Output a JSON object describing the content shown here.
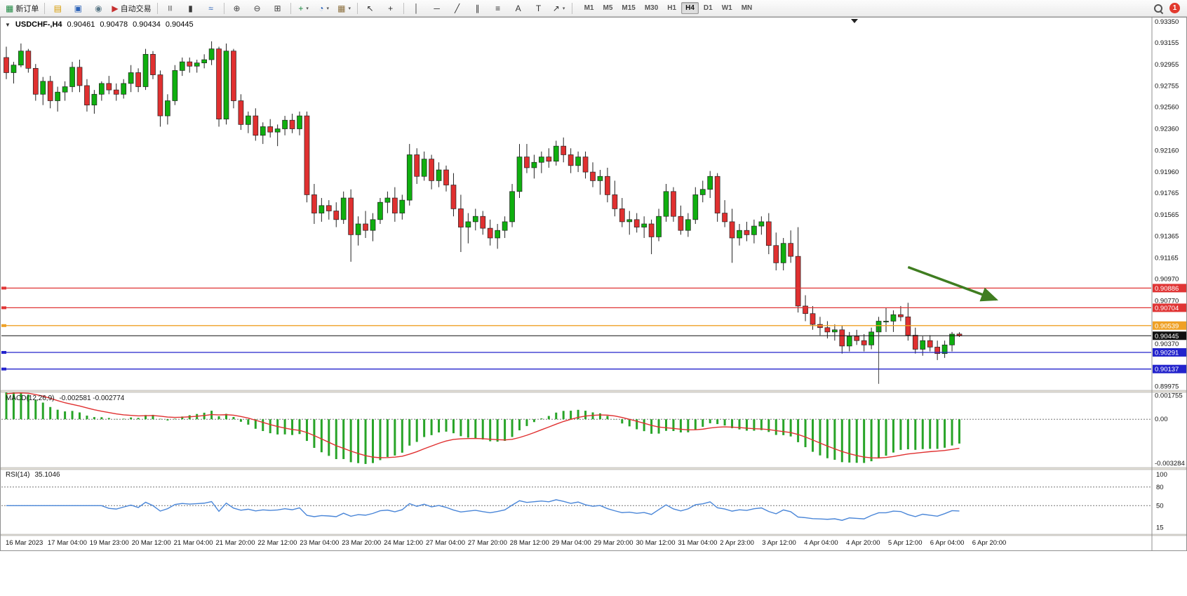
{
  "toolbar": {
    "dropdown_glyph": "▾",
    "notification_count": "1",
    "buttons": [
      {
        "name": "new-order-button",
        "glyph": "▦",
        "glyph_color": "#1b873f",
        "label": "新订单"
      },
      {
        "sep": true
      },
      {
        "name": "charts-window-button",
        "glyph": "▤",
        "glyph_color": "#d79b00"
      },
      {
        "name": "market-watch-button",
        "glyph": "▣",
        "glyph_color": "#2b62b8"
      },
      {
        "name": "navigator-button",
        "glyph": "◉",
        "glyph_color": "#5f7c8a"
      },
      {
        "name": "auto-trading-button",
        "glyph": "▶",
        "glyph_color": "#c62f2f",
        "label": "自动交易"
      },
      {
        "sep": true
      },
      {
        "name": "bar-chart-button",
        "glyph": "|||",
        "glyph_color": "#3a3a3a"
      },
      {
        "name": "candlestick-chart-button",
        "glyph": "▮",
        "glyph_color": "#3a3a3a"
      },
      {
        "name": "line-chart-button",
        "glyph": "≈",
        "glyph_color": "#2b62b8"
      },
      {
        "sep": true
      },
      {
        "name": "zoom-in-button",
        "glyph": "⊕",
        "glyph_color": "#444444"
      },
      {
        "name": "zoom-out-button",
        "glyph": "⊖",
        "glyph_color": "#444444"
      },
      {
        "name": "tile-windows-button",
        "glyph": "⊞",
        "glyph_color": "#444444"
      },
      {
        "sep": true
      },
      {
        "name": "indicators-button",
        "glyph": "+",
        "glyph_color": "#1b873f",
        "dropdown": true
      },
      {
        "name": "periods-button",
        "glyph": "◔",
        "glyph_color": "#2b62b8",
        "dropdown": true
      },
      {
        "name": "templates-button",
        "glyph": "▦",
        "glyph_color": "#8a6d3b",
        "dropdown": true
      },
      {
        "sep": true
      },
      {
        "name": "cursor-button",
        "glyph": "↖",
        "glyph_color": "#333333"
      },
      {
        "name": "crosshair-button",
        "glyph": "+",
        "glyph_color": "#333333"
      },
      {
        "sep": true
      },
      {
        "name": "vertical-line-button",
        "glyph": "│",
        "glyph_color": "#333333"
      },
      {
        "name": "horizontal-line-button",
        "glyph": "─",
        "glyph_color": "#333333"
      },
      {
        "name": "trendline-button",
        "glyph": "╱",
        "glyph_color": "#333333"
      },
      {
        "name": "equidistant-channel-button",
        "glyph": "∥",
        "glyph_color": "#333333"
      },
      {
        "name": "fibonacci-button",
        "glyph": "≡",
        "glyph_color": "#333333"
      },
      {
        "name": "text-button",
        "glyph": "A",
        "glyph_color": "#333333"
      },
      {
        "name": "text-label-button",
        "glyph": "T",
        "glyph_color": "#333333"
      },
      {
        "name": "arrows-button",
        "glyph": "↗",
        "glyph_color": "#333333",
        "dropdown": true
      },
      {
        "sep": true
      }
    ],
    "timeframes": [
      {
        "label": "M1"
      },
      {
        "label": "M5"
      },
      {
        "label": "M15"
      },
      {
        "label": "M30"
      },
      {
        "label": "H1"
      },
      {
        "label": "H4",
        "active": true
      },
      {
        "label": "D1"
      },
      {
        "label": "W1"
      },
      {
        "label": "MN"
      }
    ]
  },
  "chart": {
    "title": {
      "caret_glyph": "▼",
      "symbol_period": "USDCHF-,H4",
      "open": "0.90461",
      "high": "0.90478",
      "low": "0.90434",
      "close": "0.90445"
    },
    "price_axis_labels": [
      "0.93350",
      "0.93155",
      "0.92955",
      "0.92755",
      "0.92560",
      "0.92360",
      "0.92160",
      "0.91960",
      "0.91765",
      "0.91565",
      "0.91365",
      "0.91165",
      "0.90970",
      "0.90770",
      "0.90370",
      "0.89975"
    ],
    "price_tags": [
      {
        "text": "0.90886",
        "price": 0.90886,
        "color": "#e03535",
        "line": true
      },
      {
        "text": "0.90704",
        "price": 0.90704,
        "color": "#e03535",
        "line": true
      },
      {
        "text": "0.90539",
        "price": 0.90539,
        "color": "#efa126",
        "line": true
      },
      {
        "text": "0.90445",
        "price": 0.90445,
        "color": "#111111",
        "line": true,
        "current": true
      },
      {
        "text": "0.90291",
        "price": 0.90291,
        "color": "#2323cc",
        "line": true
      },
      {
        "text": "0.90137",
        "price": 0.90137,
        "color": "#2323cc",
        "line": true
      }
    ],
    "time_labels": [
      "16 Mar 2023",
      "17 Mar 04:00",
      "19 Mar 23:00",
      "20 Mar 12:00",
      "21 Mar 04:00",
      "21 Mar 20:00",
      "22 Mar 12:00",
      "23 Mar 04:00",
      "23 Mar 20:00",
      "24 Mar 12:00",
      "27 Mar 04:00",
      "27 Mar 20:00",
      "28 Mar 12:00",
      "29 Mar 04:00",
      "29 Mar 20:00",
      "30 Mar 12:00",
      "31 Mar 04:00",
      "2 Apr 23:00",
      "3 Apr 12:00",
      "4 Apr 04:00",
      "4 Apr 20:00",
      "5 Apr 12:00",
      "6 Apr 04:00",
      "6 Apr 20:00"
    ],
    "annotations": {
      "trend_arrow": {
        "from_index": 123,
        "from_price": 0.9108,
        "to_index": 135,
        "to_price": 0.9078,
        "color": "#3f7d20"
      },
      "vertical_line": {
        "index": 119,
        "from_price": 0.9053,
        "to_price": 0.9,
        "color": "#444444"
      }
    }
  },
  "chart_data": {
    "type": "candlestick",
    "symbol": "USDCHF",
    "timeframe": "H4",
    "y_range": [
      0.8994,
      0.9339
    ],
    "up_color": "#0faf0f",
    "down_color": "#e03030",
    "candles": [
      [
        0.9302,
        0.9312,
        0.9282,
        0.9288
      ],
      [
        0.9288,
        0.9298,
        0.9278,
        0.9295
      ],
      [
        0.9295,
        0.9315,
        0.9293,
        0.9308
      ],
      [
        0.9308,
        0.931,
        0.9288,
        0.9292
      ],
      [
        0.9292,
        0.9296,
        0.9262,
        0.9268
      ],
      [
        0.9268,
        0.9284,
        0.9258,
        0.928
      ],
      [
        0.928,
        0.9285,
        0.9255,
        0.9262
      ],
      [
        0.9262,
        0.9275,
        0.9252,
        0.927
      ],
      [
        0.927,
        0.928,
        0.9262,
        0.9275
      ],
      [
        0.9275,
        0.9298,
        0.927,
        0.9293
      ],
      [
        0.9293,
        0.93,
        0.927,
        0.9276
      ],
      [
        0.9276,
        0.9282,
        0.9252,
        0.9258
      ],
      [
        0.9258,
        0.9272,
        0.925,
        0.9268
      ],
      [
        0.9268,
        0.928,
        0.9262,
        0.9278
      ],
      [
        0.9278,
        0.9285,
        0.9268,
        0.9272
      ],
      [
        0.9272,
        0.9278,
        0.9262,
        0.9268
      ],
      [
        0.9268,
        0.9282,
        0.9264,
        0.9278
      ],
      [
        0.9278,
        0.9295,
        0.927,
        0.9288
      ],
      [
        0.9288,
        0.9292,
        0.927,
        0.9275
      ],
      [
        0.9275,
        0.931,
        0.9272,
        0.9305
      ],
      [
        0.9305,
        0.9308,
        0.9282,
        0.9286
      ],
      [
        0.9286,
        0.929,
        0.9238,
        0.9248
      ],
      [
        0.9248,
        0.9268,
        0.924,
        0.9262
      ],
      [
        0.9262,
        0.9295,
        0.9258,
        0.929
      ],
      [
        0.929,
        0.9302,
        0.9285,
        0.9298
      ],
      [
        0.9298,
        0.9302,
        0.9288,
        0.9294
      ],
      [
        0.9294,
        0.93,
        0.9288,
        0.9297
      ],
      [
        0.9297,
        0.9305,
        0.9292,
        0.93
      ],
      [
        0.93,
        0.9317,
        0.9295,
        0.931
      ],
      [
        0.931,
        0.9312,
        0.9238,
        0.9245
      ],
      [
        0.9245,
        0.9315,
        0.924,
        0.9308
      ],
      [
        0.9308,
        0.931,
        0.9255,
        0.9262
      ],
      [
        0.9262,
        0.9268,
        0.9235,
        0.924
      ],
      [
        0.924,
        0.9252,
        0.9232,
        0.9248
      ],
      [
        0.9248,
        0.9255,
        0.9225,
        0.923
      ],
      [
        0.923,
        0.9242,
        0.9222,
        0.9238
      ],
      [
        0.9238,
        0.9245,
        0.9228,
        0.9233
      ],
      [
        0.9233,
        0.924,
        0.922,
        0.9236
      ],
      [
        0.9236,
        0.9248,
        0.923,
        0.9244
      ],
      [
        0.9244,
        0.925,
        0.9232,
        0.9236
      ],
      [
        0.9236,
        0.9252,
        0.923,
        0.9248
      ],
      [
        0.9248,
        0.9252,
        0.9168,
        0.9175
      ],
      [
        0.9175,
        0.9185,
        0.9148,
        0.9158
      ],
      [
        0.9158,
        0.9172,
        0.915,
        0.9165
      ],
      [
        0.9165,
        0.917,
        0.9152,
        0.916
      ],
      [
        0.916,
        0.9168,
        0.9145,
        0.9152
      ],
      [
        0.9152,
        0.9178,
        0.9148,
        0.9172
      ],
      [
        0.9172,
        0.918,
        0.9113,
        0.9138
      ],
      [
        0.9138,
        0.9155,
        0.9128,
        0.9148
      ],
      [
        0.9148,
        0.916,
        0.9135,
        0.9142
      ],
      [
        0.9142,
        0.9158,
        0.9132,
        0.9152
      ],
      [
        0.9152,
        0.9172,
        0.9148,
        0.9168
      ],
      [
        0.9168,
        0.9178,
        0.9158,
        0.9172
      ],
      [
        0.9172,
        0.9182,
        0.915,
        0.9158
      ],
      [
        0.9158,
        0.9175,
        0.9152,
        0.917
      ],
      [
        0.917,
        0.9222,
        0.9165,
        0.9212
      ],
      [
        0.9212,
        0.9218,
        0.9185,
        0.9192
      ],
      [
        0.9192,
        0.9215,
        0.9188,
        0.9208
      ],
      [
        0.9208,
        0.9212,
        0.918,
        0.9188
      ],
      [
        0.9188,
        0.9205,
        0.9182,
        0.9198
      ],
      [
        0.9198,
        0.9202,
        0.9178,
        0.9184
      ],
      [
        0.9184,
        0.9195,
        0.9155,
        0.9162
      ],
      [
        0.9162,
        0.9175,
        0.9122,
        0.9145
      ],
      [
        0.9145,
        0.9158,
        0.913,
        0.915
      ],
      [
        0.915,
        0.9162,
        0.9142,
        0.9155
      ],
      [
        0.9155,
        0.916,
        0.9138,
        0.9144
      ],
      [
        0.9144,
        0.9152,
        0.9128,
        0.9135
      ],
      [
        0.9135,
        0.9148,
        0.9125,
        0.9142
      ],
      [
        0.9142,
        0.9155,
        0.9135,
        0.915
      ],
      [
        0.915,
        0.9185,
        0.9145,
        0.9178
      ],
      [
        0.9178,
        0.9222,
        0.9172,
        0.921
      ],
      [
        0.921,
        0.9222,
        0.9195,
        0.92
      ],
      [
        0.92,
        0.9212,
        0.919,
        0.9205
      ],
      [
        0.9205,
        0.9215,
        0.9195,
        0.921
      ],
      [
        0.921,
        0.9218,
        0.92,
        0.9206
      ],
      [
        0.9206,
        0.9225,
        0.9202,
        0.922
      ],
      [
        0.922,
        0.9228,
        0.9205,
        0.9212
      ],
      [
        0.9212,
        0.9218,
        0.9195,
        0.9202
      ],
      [
        0.9202,
        0.9215,
        0.9196,
        0.921
      ],
      [
        0.921,
        0.9215,
        0.919,
        0.9196
      ],
      [
        0.9196,
        0.9205,
        0.9182,
        0.9188
      ],
      [
        0.9188,
        0.9198,
        0.9175,
        0.9192
      ],
      [
        0.9192,
        0.92,
        0.9168,
        0.9175
      ],
      [
        0.9175,
        0.9188,
        0.9155,
        0.9162
      ],
      [
        0.9162,
        0.9172,
        0.9145,
        0.915
      ],
      [
        0.915,
        0.916,
        0.9138,
        0.9152
      ],
      [
        0.9152,
        0.9158,
        0.914,
        0.9145
      ],
      [
        0.9145,
        0.9155,
        0.9135,
        0.9148
      ],
      [
        0.9148,
        0.9152,
        0.912,
        0.9136
      ],
      [
        0.9136,
        0.9162,
        0.9132,
        0.9155
      ],
      [
        0.9155,
        0.9185,
        0.915,
        0.9178
      ],
      [
        0.9178,
        0.9182,
        0.915,
        0.9155
      ],
      [
        0.9155,
        0.9165,
        0.9138,
        0.9142
      ],
      [
        0.9142,
        0.9158,
        0.9136,
        0.9152
      ],
      [
        0.9152,
        0.9182,
        0.9148,
        0.9175
      ],
      [
        0.9175,
        0.9188,
        0.9168,
        0.918
      ],
      [
        0.918,
        0.9197,
        0.9172,
        0.9192
      ],
      [
        0.9192,
        0.9195,
        0.915,
        0.9158
      ],
      [
        0.9158,
        0.917,
        0.9145,
        0.915
      ],
      [
        0.915,
        0.9162,
        0.9112,
        0.9135
      ],
      [
        0.9135,
        0.9148,
        0.9128,
        0.9142
      ],
      [
        0.9142,
        0.915,
        0.9132,
        0.9138
      ],
      [
        0.9138,
        0.9152,
        0.913,
        0.9146
      ],
      [
        0.9146,
        0.9155,
        0.9138,
        0.915
      ],
      [
        0.915,
        0.9158,
        0.912,
        0.9128
      ],
      [
        0.9128,
        0.914,
        0.9105,
        0.9112
      ],
      [
        0.9112,
        0.9135,
        0.9105,
        0.913
      ],
      [
        0.913,
        0.9142,
        0.9112,
        0.9118
      ],
      [
        0.9118,
        0.9145,
        0.9066,
        0.9072
      ],
      [
        0.9072,
        0.9082,
        0.9058,
        0.9065
      ],
      [
        0.9065,
        0.9072,
        0.905,
        0.9055
      ],
      [
        0.9055,
        0.9062,
        0.9045,
        0.9052
      ],
      [
        0.9052,
        0.9058,
        0.9042,
        0.9048
      ],
      [
        0.9048,
        0.9055,
        0.904,
        0.905
      ],
      [
        0.905,
        0.9054,
        0.9028,
        0.9035
      ],
      [
        0.9035,
        0.9048,
        0.903,
        0.9044
      ],
      [
        0.9044,
        0.905,
        0.9036,
        0.904
      ],
      [
        0.904,
        0.9046,
        0.903,
        0.9036
      ],
      [
        0.9036,
        0.9052,
        0.9032,
        0.9048
      ],
      [
        0.9048,
        0.9062,
        0.9042,
        0.9058
      ],
      [
        0.9058,
        0.907,
        0.9048,
        0.9058
      ],
      [
        0.9058,
        0.9068,
        0.9048,
        0.9064
      ],
      [
        0.9064,
        0.9072,
        0.9058,
        0.9062
      ],
      [
        0.9062,
        0.9075,
        0.904,
        0.9045
      ],
      [
        0.9045,
        0.9052,
        0.9028,
        0.9032
      ],
      [
        0.9032,
        0.9044,
        0.9026,
        0.904
      ],
      [
        0.904,
        0.9045,
        0.903,
        0.9034
      ],
      [
        0.9034,
        0.904,
        0.9022,
        0.9028
      ],
      [
        0.9028,
        0.904,
        0.9024,
        0.9036
      ],
      [
        0.9036,
        0.9048,
        0.903,
        0.9046
      ],
      [
        0.90461,
        0.90478,
        0.90434,
        0.90445
      ]
    ]
  },
  "macd": {
    "label": "MACD(12,26,9)",
    "readout": "-0.002581 -0.002774",
    "params": {
      "fast": 12,
      "slow": 26,
      "signal": 9
    },
    "axis_labels": [
      "0.001755",
      "0.00",
      "-0.003284"
    ],
    "histogram_color": "#28a428",
    "signal_color": "#e03030",
    "y_range": [
      -0.0036,
      0.002
    ]
  },
  "rsi": {
    "label": "RSI(14)",
    "readout": "35.1046",
    "period": 14,
    "axis_labels": [
      "100",
      "80",
      "50",
      "15"
    ],
    "levels": [
      80,
      50
    ],
    "line_color": "#4a86d8",
    "y_range": [
      4,
      108
    ]
  }
}
